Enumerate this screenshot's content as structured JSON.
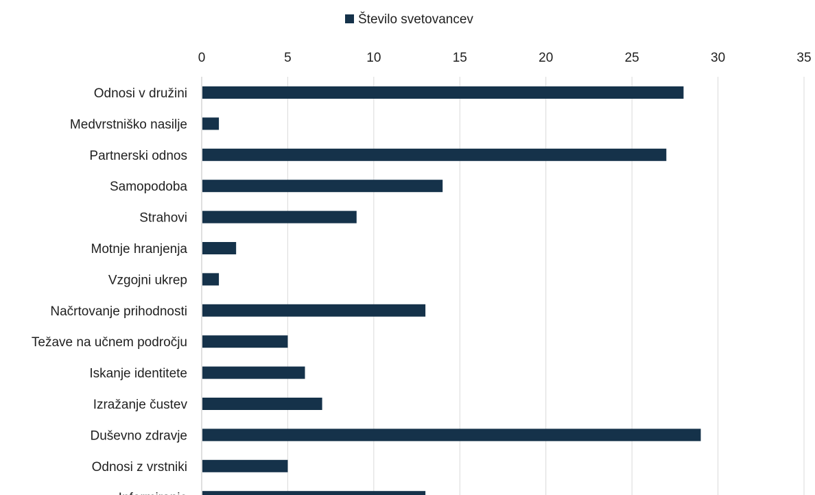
{
  "chart_data": {
    "type": "bar",
    "orientation": "horizontal",
    "categories": [
      "Odnosi v družini",
      "Medvrstniško nasilje",
      "Partnerski odnos",
      "Samopodoba",
      "Strahovi",
      "Motnje hranjenja",
      "Vzgojni ukrep",
      "Načrtovanje prihodnosti",
      "Težave na učnem področju",
      "Iskanje identitete",
      "Izražanje čustev",
      "Duševno zdravje",
      "Odnosi z vrstniki",
      "Informiranje"
    ],
    "series": [
      {
        "name": "Število svetovancev",
        "color": "#15324a",
        "values": [
          28,
          1,
          27,
          14,
          9,
          2,
          1,
          13,
          5,
          6,
          7,
          29,
          5,
          13
        ]
      }
    ],
    "xlim": [
      0,
      35
    ],
    "xticks": [
      0,
      5,
      10,
      15,
      20,
      25,
      30,
      35
    ],
    "xaxis_position": "top",
    "grid": true,
    "legend_position": "top-center"
  }
}
